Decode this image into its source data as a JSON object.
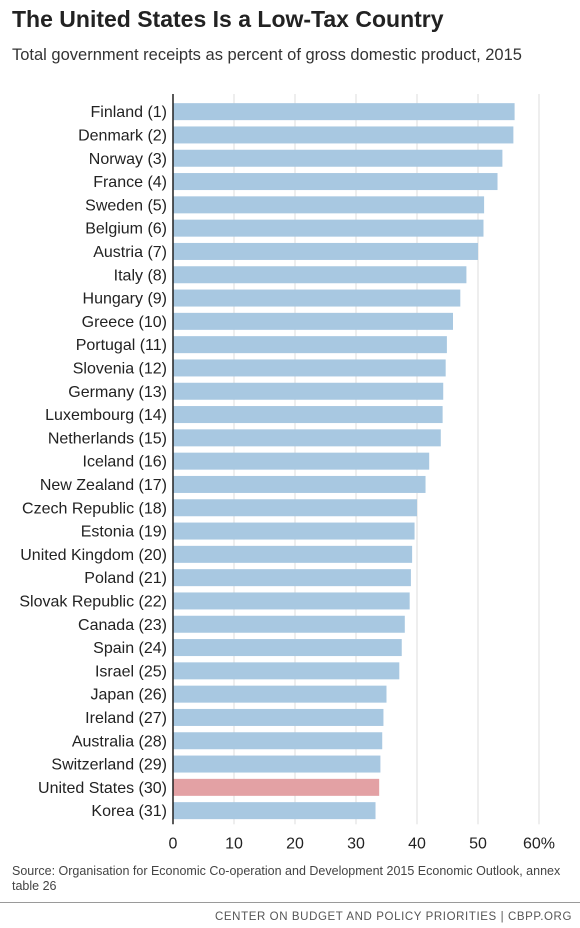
{
  "header": {
    "title": "The United States Is a Low-Tax Country",
    "subtitle": "Total government receipts as percent of gross domestic product, 2015"
  },
  "chart_data": {
    "type": "bar",
    "orientation": "horizontal",
    "categories": [
      "Finland (1)",
      "Denmark (2)",
      "Norway (3)",
      "France (4)",
      "Sweden (5)",
      "Belgium (6)",
      "Austria (7)",
      "Italy (8)",
      "Hungary (9)",
      "Greece (10)",
      "Portugal (11)",
      "Slovenia (12)",
      "Germany (13)",
      "Luxembourg (14)",
      "Netherlands (15)",
      "Iceland (16)",
      "New Zealand (17)",
      "Czech Republic (18)",
      "Estonia (19)",
      "United Kingdom (20)",
      "Poland (21)",
      "Slovak Republic (22)",
      "Canada (23)",
      "Spain (24)",
      "Israel (25)",
      "Japan (26)",
      "Ireland (27)",
      "Australia (28)",
      "Switzerland (29)",
      "United States (30)",
      "Korea (31)"
    ],
    "values": [
      56.0,
      55.8,
      54.0,
      53.2,
      51.0,
      50.9,
      50.0,
      48.1,
      47.1,
      45.9,
      44.9,
      44.7,
      44.3,
      44.2,
      43.9,
      42.0,
      41.4,
      40.0,
      39.6,
      39.2,
      39.0,
      38.8,
      38.0,
      37.5,
      37.1,
      35.0,
      34.5,
      34.3,
      34.0,
      33.8,
      33.2
    ],
    "highlight": "United States (30)",
    "xlim": [
      0,
      60
    ],
    "xticks": [
      "0",
      "10",
      "20",
      "30",
      "40",
      "50",
      "60%"
    ],
    "grid": true,
    "colors": {
      "bar": "#a8c8e1",
      "highlight": "#e3a1a4",
      "grid": "#dcdcdc",
      "axis": "#222222"
    }
  },
  "source": "Source: Organisation for Economic Co-operation and Development 2015 Economic Outlook, annex table 26",
  "footer": "CENTER ON BUDGET AND POLICY PRIORITIES | CBPP.ORG"
}
